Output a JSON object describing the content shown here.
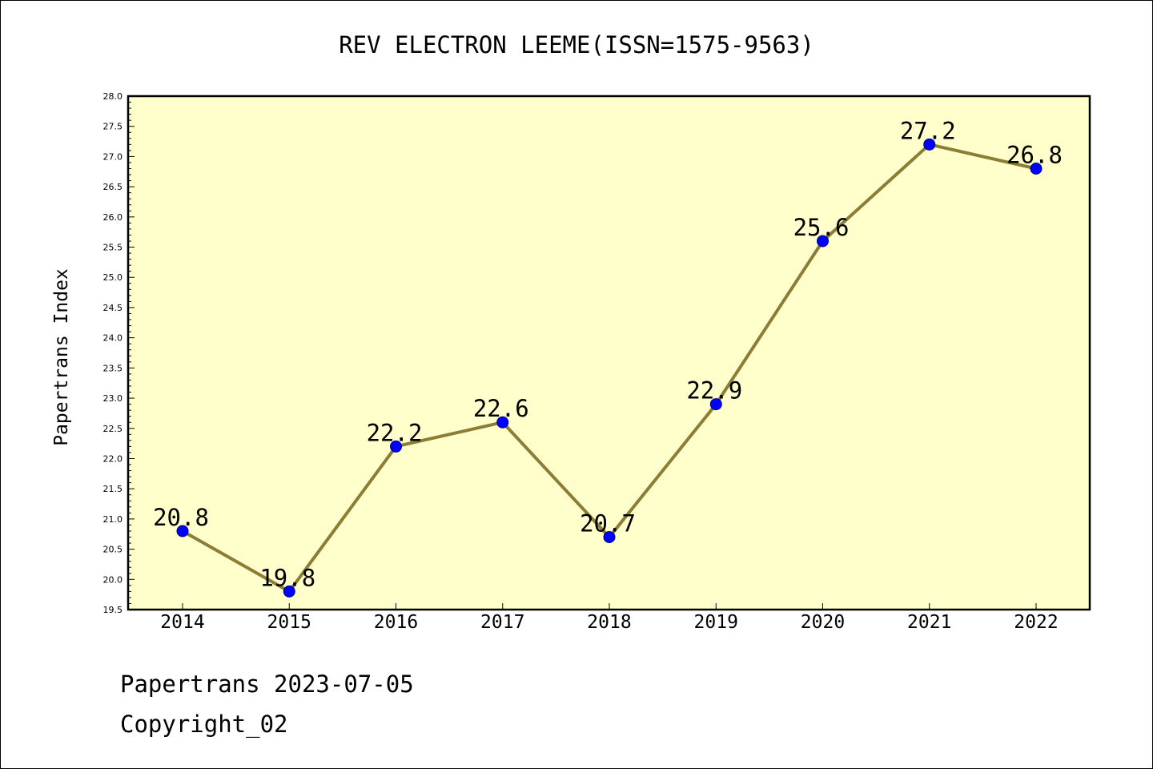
{
  "footer": {
    "line1": "Papertrans 2023-07-05",
    "line2": "Copyright_02"
  },
  "colors": {
    "plot_background": "#ffffcc",
    "line": "#8b7d35",
    "marker": "#0000ff",
    "marker_edge": "#00008b"
  },
  "chart_data": {
    "type": "line",
    "title": "REV ELECTRON LEEME(ISSN=1575-9563)",
    "xlabel": "",
    "ylabel": "Papertrans Index",
    "categories": [
      "2014",
      "2015",
      "2016",
      "2017",
      "2018",
      "2019",
      "2020",
      "2021",
      "2022"
    ],
    "values": [
      20.8,
      19.8,
      22.2,
      22.6,
      20.7,
      22.9,
      25.6,
      27.2,
      26.8
    ],
    "data_labels": [
      "20.8",
      "19.8",
      "22.2",
      "22.6",
      "20.7",
      "22.9",
      "25.6",
      "27.2",
      "26.8"
    ],
    "ylim": [
      19.5,
      28.0
    ],
    "yticks": [
      "19.5",
      "20.0",
      "20.5",
      "21.0",
      "21.5",
      "22.0",
      "22.5",
      "23.0",
      "23.5",
      "24.0",
      "24.5",
      "25.0",
      "25.5",
      "26.0",
      "26.5",
      "27.0",
      "27.5",
      "28.0"
    ],
    "grid": false,
    "legend": "none"
  }
}
